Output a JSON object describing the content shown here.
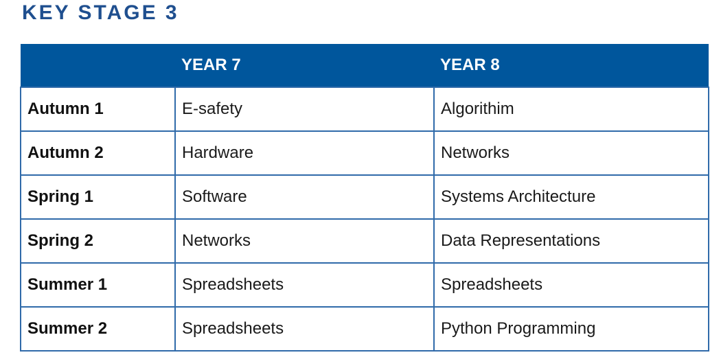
{
  "heading": "KEY STAGE 3",
  "table": {
    "headers": [
      "",
      "YEAR 7",
      "YEAR 8"
    ],
    "rows": [
      {
        "term": "Autumn 1",
        "year7": "E-safety",
        "year8": "Algorithim"
      },
      {
        "term": "Autumn 2",
        "year7": "Hardware",
        "year8": "Networks"
      },
      {
        "term": "Spring 1",
        "year7": "Software",
        "year8": "Systems Architecture"
      },
      {
        "term": "Spring 2",
        "year7": "Networks",
        "year8": "Data Representations"
      },
      {
        "term": "Summer 1",
        "year7": "Spreadsheets",
        "year8": "Spreadsheets"
      },
      {
        "term": "Summer 2",
        "year7": "Spreadsheets",
        "year8": "Python Programming"
      }
    ]
  },
  "colors": {
    "heading": "#1f4f8f",
    "header_bg": "#00569c",
    "border": "#2f6aa9"
  }
}
